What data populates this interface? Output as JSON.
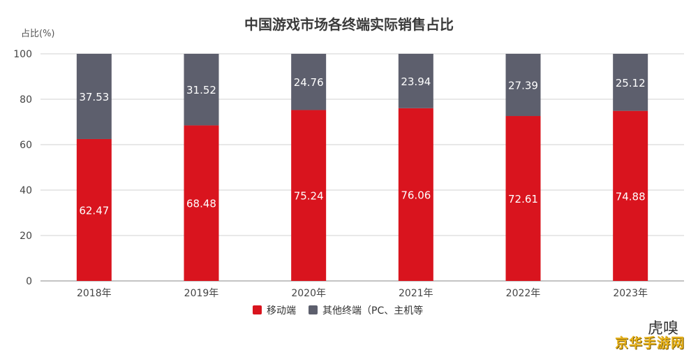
{
  "chart_data": {
    "type": "bar",
    "stacked": true,
    "title": "中国游戏市场各终端实际销售占比",
    "ylabel": "占比(%)",
    "ylim": [
      0,
      100
    ],
    "yticks": [
      0,
      20,
      40,
      60,
      80,
      100
    ],
    "grid": true,
    "legend_position": "bottom",
    "categories": [
      "2018年",
      "2019年",
      "2020年",
      "2021年",
      "2022年",
      "2023年"
    ],
    "series": [
      {
        "name": "移动端",
        "color": "#d9141e",
        "values": [
          62.47,
          68.48,
          75.24,
          76.06,
          72.61,
          74.88
        ]
      },
      {
        "name": "其他终端（PC、主机等",
        "color": "#5d5f6d",
        "values": [
          37.53,
          31.52,
          24.76,
          23.94,
          27.39,
          25.12
        ]
      }
    ]
  },
  "watermark": {
    "logo_text": "虎嗅",
    "site_text": "京华手游网"
  }
}
